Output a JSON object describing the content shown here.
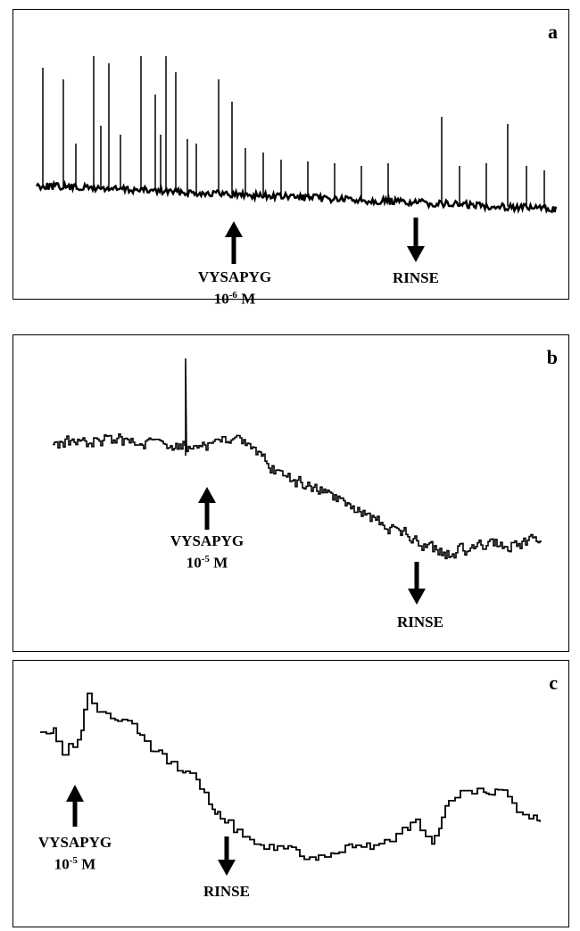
{
  "chart_data": [
    {
      "type": "line",
      "panel_label": "a",
      "description_trace": "spiking baseline, many tall spikes early, fewer later",
      "annotations": [
        {
          "text": "VYSAPYG",
          "conc_base": "10",
          "conc_exp": "-6",
          "conc_unit": " M",
          "arrow": "up"
        },
        {
          "text": "RINSE",
          "arrow": "down"
        }
      ]
    },
    {
      "type": "line",
      "panel_label": "b",
      "annotations": [
        {
          "text": "VYSAPYG",
          "conc_base": "10",
          "conc_exp": "-5",
          "conc_unit": " M",
          "arrow": "up"
        },
        {
          "text": "RINSE",
          "arrow": "down"
        }
      ]
    },
    {
      "type": "line",
      "panel_label": "c",
      "annotations": [
        {
          "text": "VYSAPYG",
          "conc_base": "10",
          "conc_exp": "-5",
          "conc_unit": " M",
          "arrow": "up"
        },
        {
          "text": "RINSE",
          "arrow": "down"
        }
      ]
    }
  ]
}
